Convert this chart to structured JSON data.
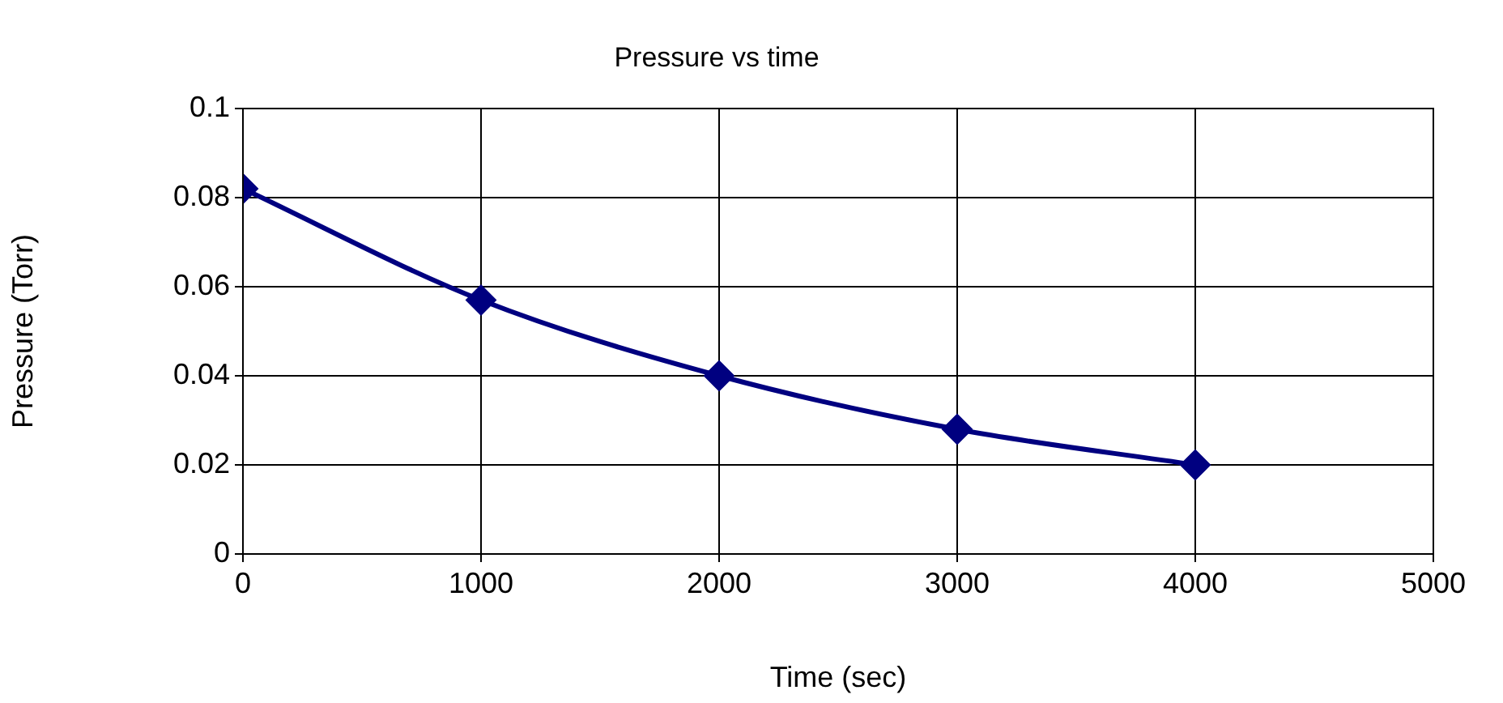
{
  "chart_data": {
    "type": "line",
    "title": "Pressure vs time",
    "xlabel": "Time (sec)",
    "ylabel": "Pressure (Torr)",
    "x": [
      0,
      1000,
      2000,
      3000,
      4000
    ],
    "series": [
      {
        "color": "#000080",
        "values": [
          0.082,
          0.057,
          0.04,
          0.028,
          0.02
        ]
      }
    ],
    "xlim": [
      0,
      5000
    ],
    "xticks": [
      0,
      1000,
      2000,
      3000,
      4000,
      5000
    ],
    "ylim": [
      0,
      0.1
    ],
    "yticks": [
      0,
      0.02,
      0.04,
      0.06,
      0.08,
      0.1
    ],
    "grid": true,
    "marker": "diamond",
    "line_style": "solid",
    "legend": false
  }
}
